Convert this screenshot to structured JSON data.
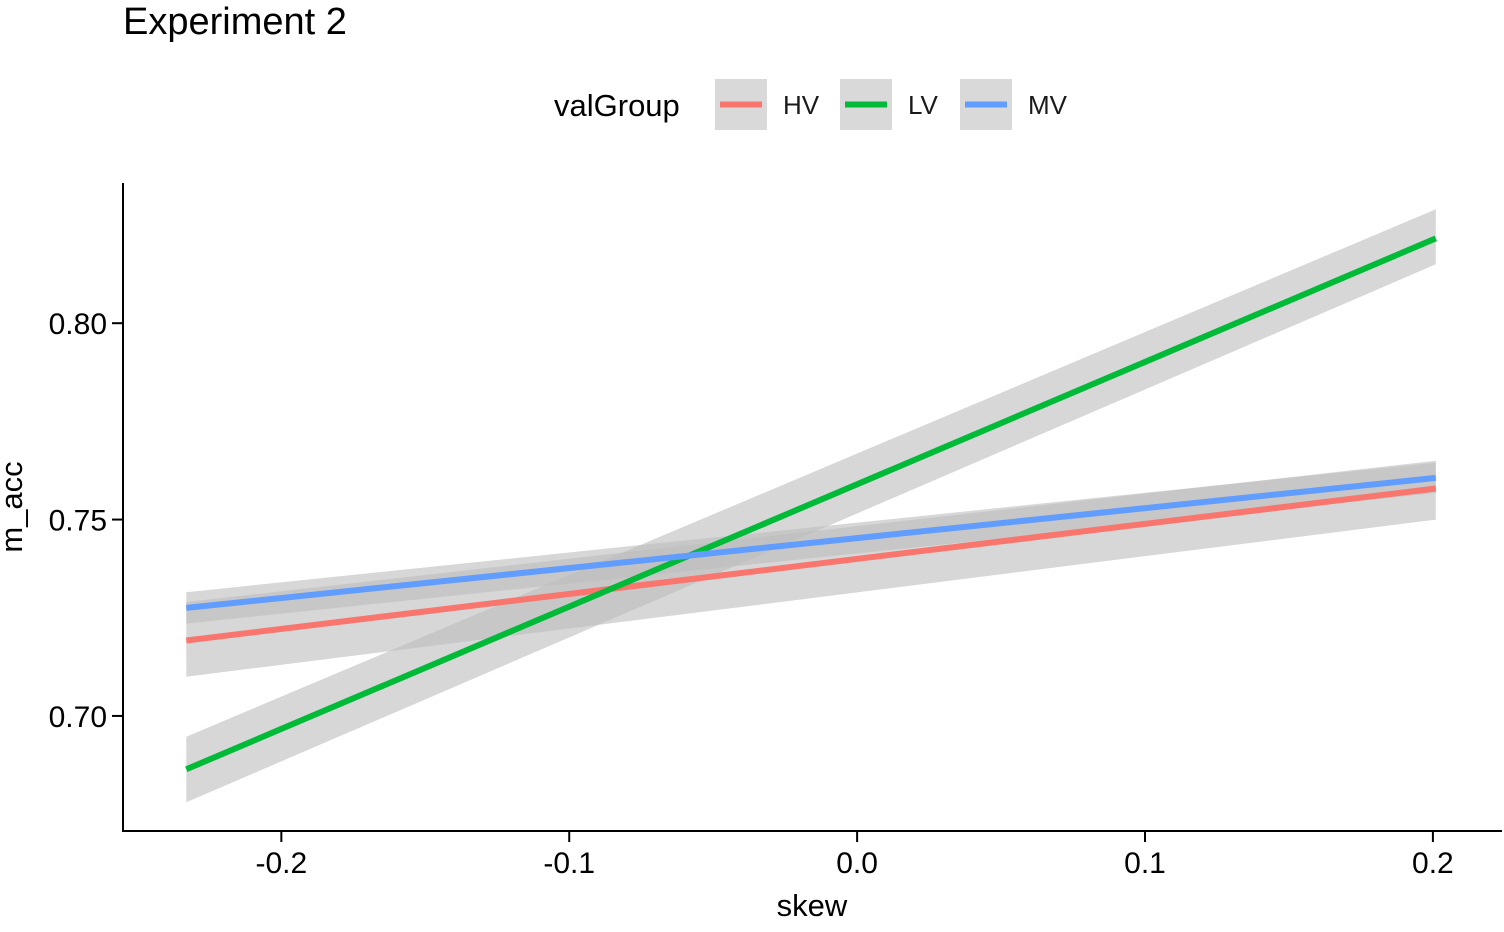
{
  "chart_data": {
    "type": "line",
    "title": "Experiment 2",
    "xlabel": "skew",
    "ylabel": "m_acc",
    "xlim": [
      -0.255,
      0.224
    ],
    "ylim": [
      0.6707,
      0.8357
    ],
    "x_ticks": [
      -0.2,
      -0.1,
      0.0,
      0.1,
      0.2
    ],
    "x_tick_labels": [
      "-0.2",
      "-0.1",
      "0.0",
      "0.1",
      "0.2"
    ],
    "y_ticks": [
      0.7,
      0.75,
      0.8
    ],
    "y_tick_labels": [
      "0.70",
      "0.75",
      "0.80"
    ],
    "grid": false,
    "legend": {
      "title": "valGroup",
      "placement": "top"
    },
    "band_color": "#bdbdbd",
    "band_opacity": 0.6,
    "series": [
      {
        "name": "HV",
        "color": "#F8766D",
        "x": [
          -0.233,
          0.201
        ],
        "y": [
          0.7192,
          0.7579
        ],
        "ci_lower": [
          0.71,
          0.75
        ],
        "ci_upper": [
          0.729,
          0.765
        ]
      },
      {
        "name": "LV",
        "color": "#00BA38",
        "x": [
          -0.233,
          0.201
        ],
        "y": [
          0.6864,
          0.8216
        ],
        "ci_lower": [
          0.678,
          0.815
        ],
        "ci_upper": [
          0.6947,
          0.829
        ]
      },
      {
        "name": "MV",
        "color": "#619CFF",
        "x": [
          -0.233,
          0.201
        ],
        "y": [
          0.7275,
          0.7606
        ],
        "ci_lower": [
          0.7235,
          0.7568
        ],
        "ci_upper": [
          0.7315,
          0.7645
        ]
      }
    ]
  }
}
